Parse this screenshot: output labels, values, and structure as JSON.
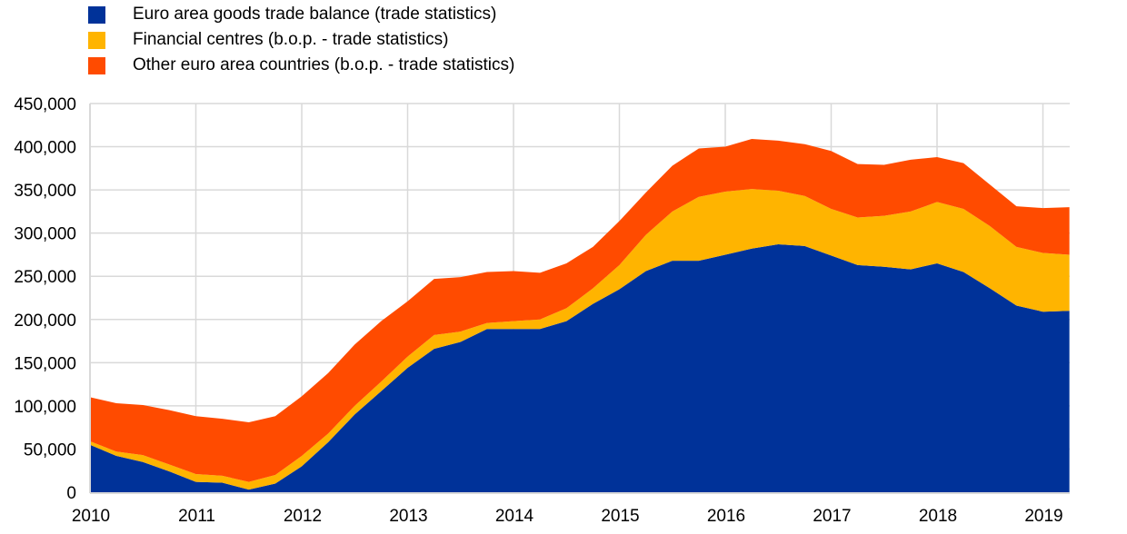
{
  "chart_data": {
    "type": "area",
    "stacked": true,
    "title": "",
    "xlabel": "",
    "ylabel": "",
    "ylim": [
      0,
      450000
    ],
    "yticks": [
      0,
      50000,
      100000,
      150000,
      200000,
      250000,
      300000,
      350000,
      400000,
      450000
    ],
    "ytick_labels": [
      "0",
      "50,000",
      "100,000",
      "150,000",
      "200,000",
      "250,000",
      "300,000",
      "350,000",
      "400,000",
      "450,000"
    ],
    "xtick_labels": [
      "2010",
      "2011",
      "2012",
      "2013",
      "2014",
      "2015",
      "2016",
      "2017",
      "2018",
      "2019"
    ],
    "frequency": "quarterly",
    "x": [
      "2010Q1",
      "2010Q2",
      "2010Q3",
      "2010Q4",
      "2011Q1",
      "2011Q2",
      "2011Q3",
      "2011Q4",
      "2012Q1",
      "2012Q2",
      "2012Q3",
      "2012Q4",
      "2013Q1",
      "2013Q2",
      "2013Q3",
      "2013Q4",
      "2014Q1",
      "2014Q2",
      "2014Q3",
      "2014Q4",
      "2015Q1",
      "2015Q2",
      "2015Q3",
      "2015Q4",
      "2016Q1",
      "2016Q2",
      "2016Q3",
      "2016Q4",
      "2017Q1",
      "2017Q2",
      "2017Q3",
      "2017Q4",
      "2018Q1",
      "2018Q2",
      "2018Q3",
      "2018Q4",
      "2019Q1",
      "2019Q2"
    ],
    "grid": true,
    "legend_position": "top-left",
    "series": [
      {
        "name": "Euro area goods trade balance (trade statistics)",
        "color": "#003299",
        "values": [
          55000,
          42000,
          35000,
          24000,
          12000,
          11000,
          3000,
          10000,
          30000,
          58000,
          90000,
          117000,
          144000,
          166000,
          174000,
          189000,
          189000,
          189000,
          198000,
          218000,
          235000,
          256000,
          268000,
          268000,
          275000,
          282000,
          287000,
          285000,
          274000,
          263000,
          261000,
          258000,
          265000,
          255000,
          236000,
          216000,
          209000,
          210000
        ]
      },
      {
        "name": "Financial centres (b.o.p. - trade statistics)",
        "color": "#FFB400",
        "values": [
          4000,
          5000,
          8000,
          8000,
          9000,
          8000,
          9000,
          10000,
          12000,
          10000,
          10000,
          11000,
          13000,
          16000,
          12000,
          7000,
          9000,
          11000,
          15000,
          18000,
          28000,
          42000,
          57000,
          74000,
          73000,
          69000,
          62000,
          58000,
          54000,
          55000,
          59000,
          67000,
          71000,
          73000,
          72000,
          68000,
          68000,
          65000
        ]
      },
      {
        "name": "Other euro area countries (b.o.p. - trade statistics)",
        "color": "#FF4B00",
        "values": [
          51000,
          56000,
          58000,
          63000,
          67000,
          66000,
          69000,
          68000,
          69000,
          70000,
          71000,
          70000,
          64000,
          65000,
          63000,
          59000,
          58000,
          54000,
          52000,
          48000,
          51000,
          49000,
          53000,
          56000,
          52000,
          58000,
          58000,
          60000,
          67000,
          62000,
          59000,
          60000,
          52000,
          53000,
          48000,
          47000,
          52000,
          55000
        ]
      }
    ]
  }
}
